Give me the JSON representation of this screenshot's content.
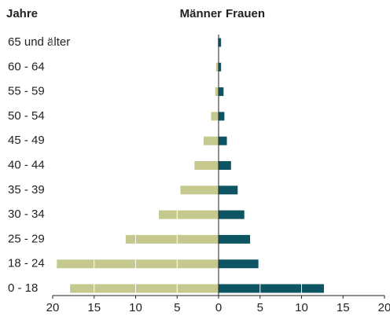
{
  "chart_data": {
    "type": "bar",
    "orientation": "horizontal",
    "ylabel": "Jahre",
    "categories": [
      "65 und älter",
      "60 - 64",
      "55 - 59",
      "50 - 54",
      "45 - 49",
      "40 - 44",
      "35 - 39",
      "30 - 34",
      "25 - 29",
      "18 - 24",
      "0 - 18"
    ],
    "series": [
      {
        "name": "Männer",
        "color": "#c5c98e",
        "values": [
          -0.1,
          -0.3,
          -0.4,
          -0.9,
          -1.8,
          -2.9,
          -4.6,
          -7.2,
          -11.2,
          -19.5,
          -17.9
        ]
      },
      {
        "name": "Frauen",
        "color": "#0d5563",
        "values": [
          0.3,
          0.3,
          0.6,
          0.7,
          1.0,
          1.5,
          2.3,
          3.1,
          3.8,
          4.8,
          12.7
        ]
      }
    ],
    "xlim": [
      -20,
      20
    ],
    "xticks": [
      {
        "value": -20,
        "label": "20"
      },
      {
        "value": -15,
        "label": "15"
      },
      {
        "value": -10,
        "label": "10"
      },
      {
        "value": -5,
        "label": "5"
      },
      0,
      5,
      10,
      15,
      20
    ],
    "grid": true
  }
}
